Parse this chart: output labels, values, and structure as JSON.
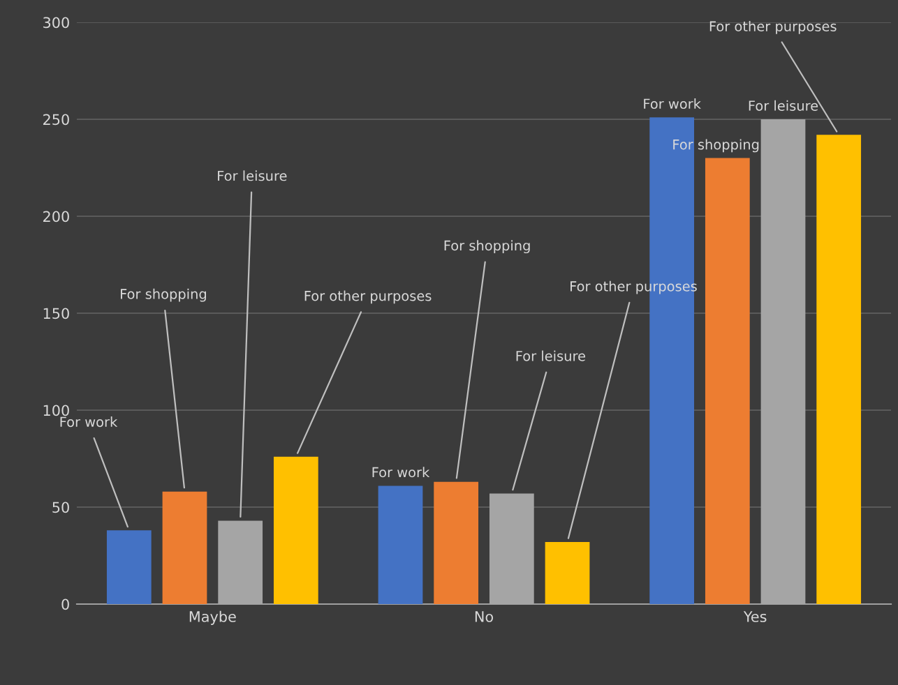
{
  "chart_data": {
    "type": "bar",
    "categories": [
      "Maybe",
      "No",
      "Yes"
    ],
    "series": [
      {
        "name": "For work",
        "color": "#4472c4",
        "values": [
          38,
          61,
          251
        ]
      },
      {
        "name": "For shopping",
        "color": "#ed7d31",
        "values": [
          58,
          63,
          230
        ]
      },
      {
        "name": "For leisure",
        "color": "#a5a5a5",
        "values": [
          43,
          57,
          250
        ]
      },
      {
        "name": "For other purposes",
        "color": "#ffc000",
        "values": [
          76,
          32,
          242
        ]
      }
    ],
    "ylim": [
      0,
      300
    ],
    "yticks": [
      0,
      50,
      100,
      150,
      200,
      250,
      300
    ],
    "grid": "y",
    "legend": false
  }
}
